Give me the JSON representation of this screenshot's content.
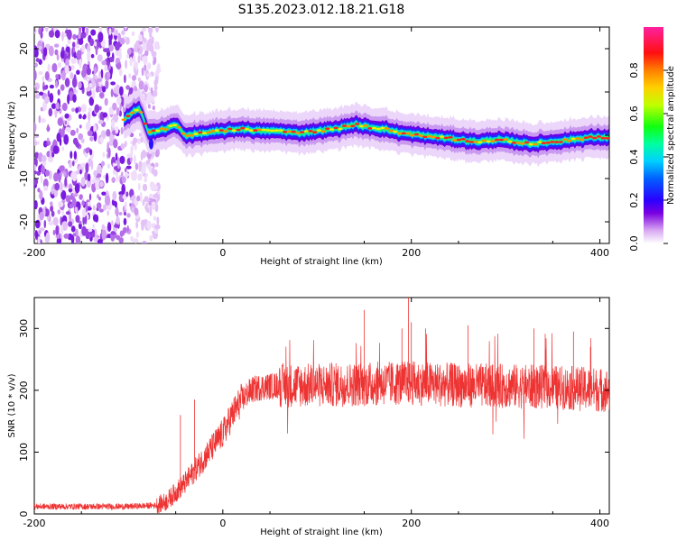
{
  "title": "S135.2023.012.18.21.G18",
  "chart_data": [
    {
      "type": "heatmap",
      "xlabel": "Height of straight line (km)",
      "ylabel": "Frequency (Hz)",
      "xlim": [
        -200,
        410
      ],
      "ylim": [
        -25,
        25
      ],
      "xticks": [
        "-200",
        "0",
        "200",
        "400"
      ],
      "xtick_values": [
        -200,
        0,
        200,
        400
      ],
      "yticks": [
        "-20",
        "-10",
        "0",
        "10",
        "20"
      ],
      "ytick_values": [
        -20,
        -10,
        0,
        10,
        20
      ],
      "noise_region": {
        "x_from": -200,
        "x_to": -85,
        "note": "broadband noise"
      },
      "ridge": {
        "x": [
          -105,
          -95,
          -88,
          -80,
          -70,
          -60,
          -50,
          -40,
          -20,
          0,
          20,
          40,
          60,
          80,
          100,
          120,
          140,
          150,
          170,
          190,
          210,
          230,
          250,
          270,
          290,
          310,
          330,
          350,
          370,
          390,
          410
        ],
        "y": [
          3.5,
          5.5,
          6.0,
          1.0,
          1.0,
          1.5,
          2.5,
          0.0,
          0.5,
          1.0,
          1.5,
          1.0,
          1.0,
          0.5,
          1.0,
          1.5,
          2.5,
          2.0,
          1.5,
          0.5,
          0.0,
          -0.5,
          -1.0,
          -1.5,
          -1.0,
          -1.5,
          -2.0,
          -1.5,
          -1.0,
          -0.5,
          -0.5
        ]
      },
      "colorbar": {
        "label": "Normalized spectral amplitude",
        "range": [
          0,
          1
        ],
        "ticks": [
          "0.0",
          "0.2",
          "0.4",
          "0.6",
          "0.8"
        ],
        "tick_values": [
          0,
          0.2,
          0.4,
          0.6,
          0.8
        ]
      }
    },
    {
      "type": "line",
      "xlabel": "Height of straight line (km)",
      "ylabel": "SNR (10 * v/v)",
      "xlim": [
        -200,
        410
      ],
      "ylim": [
        0,
        350
      ],
      "xticks": [
        "-200",
        "0",
        "200",
        "400"
      ],
      "xtick_values": [
        -200,
        0,
        200,
        400
      ],
      "yticks": [
        "0",
        "100",
        "200",
        "300"
      ],
      "ytick_values": [
        0,
        100,
        200,
        300
      ],
      "color": "#ee3333",
      "trend": {
        "x": [
          -200,
          -100,
          -70,
          -60,
          -50,
          -40,
          -30,
          -20,
          -10,
          0,
          10,
          20,
          30,
          40,
          60,
          100,
          150,
          200,
          250,
          300,
          350,
          410
        ],
        "y": [
          12,
          12,
          14,
          20,
          35,
          50,
          70,
          90,
          110,
          130,
          160,
          185,
          200,
          205,
          208,
          208,
          210,
          212,
          208,
          207,
          205,
          200
        ]
      },
      "spikes": {
        "x": [
          -45,
          -30,
          150,
          190,
          197,
          200,
          215,
          260,
          330,
          372,
          390
        ],
        "y": [
          160,
          185,
          330,
          300,
          358,
          310,
          300,
          305,
          300,
          295,
          270
        ]
      }
    }
  ]
}
